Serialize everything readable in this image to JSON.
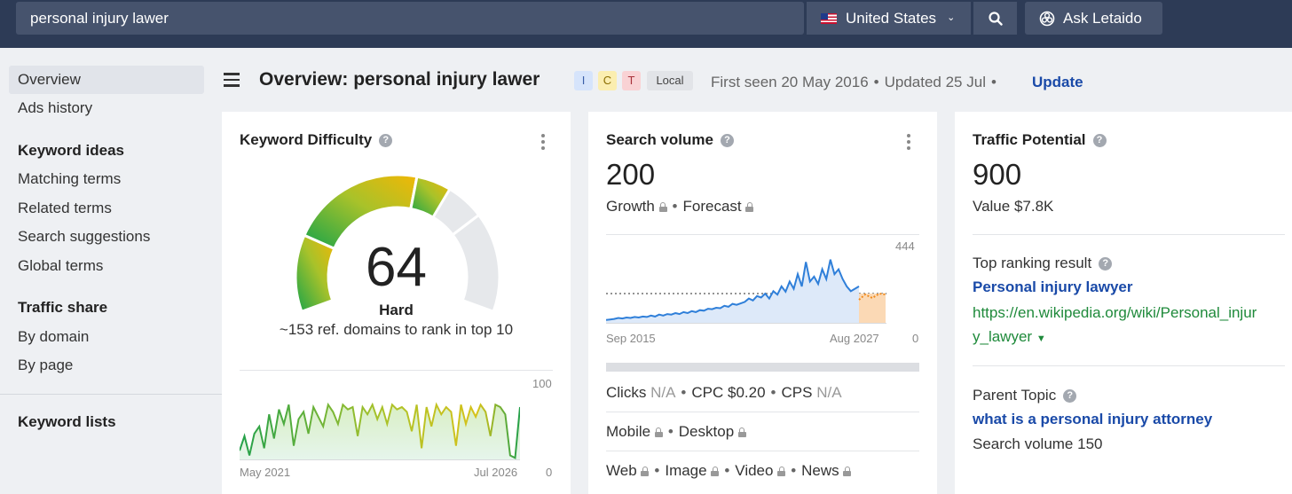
{
  "search": {
    "query": "personal injury lawer"
  },
  "country": {
    "label": "United States",
    "flag": "us-flag"
  },
  "ask": {
    "label": "Ask Letaido"
  },
  "sidebar": {
    "overview": "Overview",
    "ads_history": "Ads history",
    "keyword_ideas": "Keyword ideas",
    "matching_terms": "Matching terms",
    "related_terms": "Related terms",
    "search_suggestions": "Search suggestions",
    "global_terms": "Global terms",
    "traffic_share": "Traffic share",
    "by_domain": "By domain",
    "by_page": "By page",
    "keyword_lists": "Keyword lists"
  },
  "header": {
    "title": "Overview: personal injury lawer",
    "badges": [
      "I",
      "C",
      "T",
      "Local"
    ],
    "first_seen": "First seen 20 May 2016",
    "updated": "Updated 25 Jul",
    "update_link": "Update"
  },
  "kd": {
    "title": "Keyword Difficulty",
    "score": "64",
    "score_value": 64,
    "label": "Hard",
    "sub": "~153 ref. domains to rank in top 10",
    "chart_start": "May 2021",
    "chart_end": "Jul 2026",
    "y_max": "100",
    "y_min": "0"
  },
  "sv": {
    "title": "Search volume",
    "value": "200",
    "growth": "Growth",
    "forecast": "Forecast",
    "y_max": "444",
    "y_min": "0",
    "chart_start": "Sep 2015",
    "chart_end": "Aug 2027",
    "clicks": "Clicks",
    "clicks_val": "N/A",
    "cpc": "CPC $0.20",
    "cps": "CPS",
    "cps_val": "N/A",
    "mobile": "Mobile",
    "desktop": "Desktop",
    "web": "Web",
    "image": "Image",
    "video": "Video",
    "news": "News"
  },
  "tp": {
    "title": "Traffic Potential",
    "value": "900",
    "sub_value": "Value $7.8K",
    "top_result_label": "Top ranking result",
    "top_result_title": "Personal injury lawyer",
    "top_result_url_1": "https://en.wikipedia.org/wiki/Personal_injur",
    "top_result_url_2": "y_lawyer",
    "parent_label": "Parent Topic",
    "parent_title": "what is a personal injury attorney",
    "parent_volume": "Search volume 150"
  },
  "colors": {
    "topbar": "#2d3b56",
    "link": "#1a4aa8",
    "url": "#1f8a3b"
  }
}
